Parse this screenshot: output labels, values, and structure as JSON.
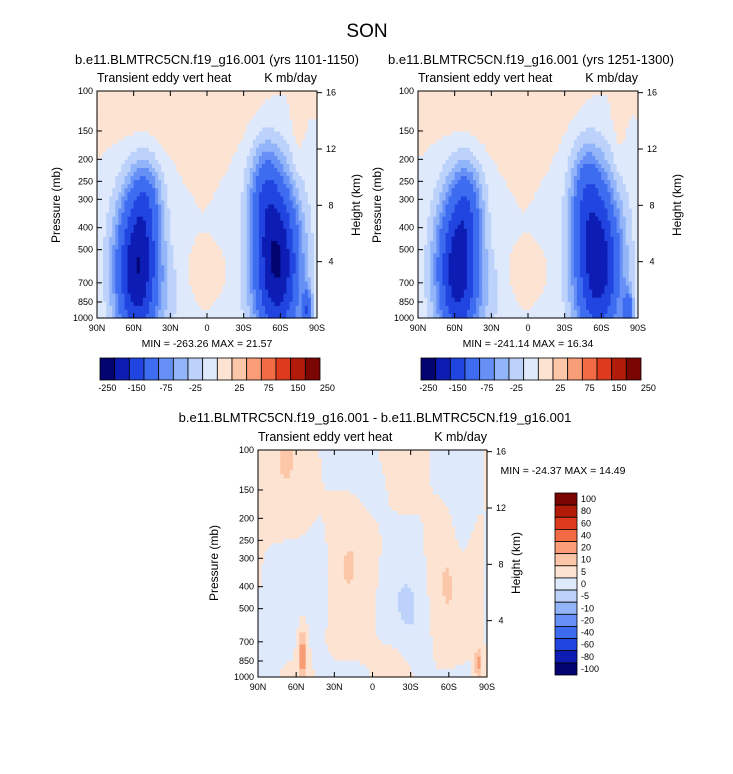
{
  "figure": {
    "title": "SON"
  },
  "palettes": {
    "abs": [
      "#03046f",
      "#0d1db4",
      "#2045e0",
      "#3d6cf0",
      "#6690f5",
      "#92b4f8",
      "#bcd2fa",
      "#dfe9fc",
      "#fde3d2",
      "#fcc7a8",
      "#f99d76",
      "#f36b45",
      "#de3a1d",
      "#b11b08",
      "#7a0604"
    ],
    "diff": [
      "#03046f",
      "#0d1db4",
      "#2045e0",
      "#3d6cf0",
      "#6690f5",
      "#92b4f8",
      "#bcd2fa",
      "#dfe9fc",
      "#fde3d2",
      "#fcc7a8",
      "#f99d76",
      "#f36b45",
      "#de3a1d",
      "#b11b08",
      "#7a0604"
    ]
  },
  "chart_data": [
    {
      "type": "heatmap",
      "title": "b.e11.BLMTRC5CN.f19_g16.001 (yrs 1101-1150)",
      "left_label": "Transient eddy vert heat",
      "right_label": "K mb/day",
      "xlabel": "",
      "ylabel": "Pressure (mb)",
      "ylabel_right": "Height (km)",
      "x_ticks": [
        "90N",
        "60N",
        "30N",
        "0",
        "30S",
        "60S",
        "90S"
      ],
      "y_ticks": [
        "100",
        "150",
        "200",
        "250",
        "300",
        "400",
        "500",
        "700",
        "850",
        "1000"
      ],
      "y_ticks_right": [
        "4",
        "8",
        "12",
        "16"
      ],
      "y_scale": "log",
      "ylim": [
        1000,
        100
      ],
      "xlim": [
        90,
        -90
      ],
      "min": -263.26,
      "max": 21.57,
      "stats_text": "MIN = -263.26   MAX = 21.57",
      "colorbar_levels": [
        "-250",
        "-150",
        "-75",
        "-25",
        "25",
        "75",
        "150",
        "250"
      ],
      "field": [
        {
          "lat": 57,
          "p": 620,
          "sig_lat": 13,
          "sig_lnp": 0.55,
          "amp": -248
        },
        {
          "lat": 50,
          "p": 300,
          "sig_lat": 9,
          "sig_lnp": 0.32,
          "amp": -70
        },
        {
          "lat": 28,
          "p": 800,
          "sig_lat": 6,
          "sig_lnp": 0.25,
          "amp": -20
        },
        {
          "lat": -57,
          "p": 580,
          "sig_lat": 14,
          "sig_lnp": 0.6,
          "amp": -256
        },
        {
          "lat": -47,
          "p": 270,
          "sig_lat": 9,
          "sig_lnp": 0.35,
          "amp": -75
        },
        {
          "lat": -82,
          "p": 930,
          "sig_lat": 3,
          "sig_lnp": 0.15,
          "amp": -120
        },
        {
          "lat": 50,
          "p": 120,
          "sig_lat": 22,
          "sig_lnp": 0.35,
          "amp": 18
        },
        {
          "lat": -10,
          "p": 115,
          "sig_lat": 35,
          "sig_lnp": 0.3,
          "amp": 14
        },
        {
          "lat": 0,
          "p": 620,
          "sig_lat": 9,
          "sig_lnp": 0.12,
          "amp": 14
        },
        {
          "lat": -74,
          "p": 160,
          "sig_lat": 4,
          "sig_lnp": 0.4,
          "amp": 16
        }
      ]
    },
    {
      "type": "heatmap",
      "title": "b.e11.BLMTRC5CN.f19_g16.001 (yrs 1251-1300)",
      "left_label": "Transient eddy vert heat",
      "right_label": "K mb/day",
      "xlabel": "",
      "ylabel": "Pressure (mb)",
      "ylabel_right": "Height (km)",
      "x_ticks": [
        "90N",
        "60N",
        "30N",
        "0",
        "30S",
        "60S",
        "90S"
      ],
      "y_ticks": [
        "100",
        "150",
        "200",
        "250",
        "300",
        "400",
        "500",
        "700",
        "850",
        "1000"
      ],
      "y_ticks_right": [
        "4",
        "8",
        "12",
        "16"
      ],
      "y_scale": "log",
      "ylim": [
        1000,
        100
      ],
      "xlim": [
        90,
        -90
      ],
      "min": -241.14,
      "max": 16.34,
      "stats_text": "MIN = -241.14   MAX = 16.34",
      "colorbar_levels": [
        "-250",
        "-150",
        "-75",
        "-25",
        "25",
        "75",
        "150",
        "250"
      ],
      "field": [
        {
          "lat": 57,
          "p": 620,
          "sig_lat": 13,
          "sig_lnp": 0.55,
          "amp": -235
        },
        {
          "lat": 50,
          "p": 300,
          "sig_lat": 9,
          "sig_lnp": 0.32,
          "amp": -68
        },
        {
          "lat": 28,
          "p": 800,
          "sig_lat": 6,
          "sig_lnp": 0.25,
          "amp": -20
        },
        {
          "lat": -57,
          "p": 580,
          "sig_lat": 14,
          "sig_lnp": 0.6,
          "amp": -238
        },
        {
          "lat": -47,
          "p": 270,
          "sig_lat": 9,
          "sig_lnp": 0.35,
          "amp": -72
        },
        {
          "lat": -82,
          "p": 930,
          "sig_lat": 3,
          "sig_lnp": 0.15,
          "amp": -110
        },
        {
          "lat": 50,
          "p": 120,
          "sig_lat": 22,
          "sig_lnp": 0.35,
          "amp": 16
        },
        {
          "lat": -10,
          "p": 115,
          "sig_lat": 35,
          "sig_lnp": 0.3,
          "amp": 13
        },
        {
          "lat": 0,
          "p": 620,
          "sig_lat": 9,
          "sig_lnp": 0.12,
          "amp": 12
        },
        {
          "lat": -74,
          "p": 160,
          "sig_lat": 4,
          "sig_lnp": 0.4,
          "amp": 14
        }
      ]
    },
    {
      "type": "heatmap",
      "title": "b.e11.BLMTRC5CN.f19_g16.001 - b.e11.BLMTRC5CN.f19_g16.001",
      "left_label": "Transient eddy vert heat",
      "right_label": "K mb/day",
      "xlabel": "",
      "ylabel": "Pressure (mb)",
      "ylabel_right": "Height (km)",
      "x_ticks": [
        "90N",
        "60N",
        "30N",
        "0",
        "30S",
        "60S",
        "90S"
      ],
      "y_ticks": [
        "100",
        "150",
        "200",
        "250",
        "300",
        "400",
        "500",
        "700",
        "850",
        "1000"
      ],
      "y_ticks_right": [
        "4",
        "8",
        "12",
        "16"
      ],
      "y_scale": "log",
      "ylim": [
        1000,
        100
      ],
      "xlim": [
        90,
        -90
      ],
      "min": -24.37,
      "max": 14.49,
      "stats_text": "MIN = -24.37   MAX = 14.49",
      "colorbar_levels": [
        "100",
        "80",
        "60",
        "40",
        "20",
        "10",
        "5",
        "0",
        "-5",
        "-10",
        "-20",
        "-40",
        "-60",
        "-80",
        "-100"
      ],
      "field": [
        {
          "lat": 55,
          "p": 800,
          "sig_lat": 2.5,
          "sig_lnp": 0.2,
          "amp": 14
        },
        {
          "lat": -83,
          "p": 870,
          "sig_lat": 2,
          "sig_lnp": 0.12,
          "amp": 12
        },
        {
          "lat": 15,
          "p": 250,
          "sig_lat": 18,
          "sig_lnp": 0.5,
          "amp": 3
        },
        {
          "lat": -55,
          "p": 400,
          "sig_lat": 10,
          "sig_lnp": 0.5,
          "amp": 3
        },
        {
          "lat": 70,
          "p": 150,
          "sig_lat": 15,
          "sig_lnp": 0.5,
          "amp": 3
        },
        {
          "lat": -30,
          "p": 600,
          "sig_lat": 12,
          "sig_lnp": 0.4,
          "amp": -4
        },
        {
          "lat": 40,
          "p": 350,
          "sig_lat": 8,
          "sig_lnp": 0.4,
          "amp": -4
        },
        {
          "lat": 0,
          "p": 150,
          "sig_lat": 10,
          "sig_lnp": 0.3,
          "amp": -3
        },
        {
          "lat": -20,
          "p": 850,
          "sig_lat": 10,
          "sig_lnp": 0.25,
          "amp": 3
        },
        {
          "lat": -70,
          "p": 200,
          "sig_lat": 5,
          "sig_lnp": 0.4,
          "amp": -4
        },
        {
          "lat": 80,
          "p": 700,
          "sig_lat": 5,
          "sig_lnp": 0.4,
          "amp": -4
        }
      ]
    }
  ]
}
